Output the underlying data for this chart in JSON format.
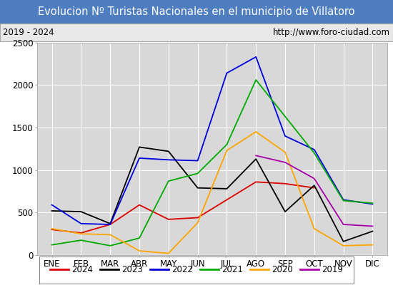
{
  "title": "Evolucion Nº Turistas Nacionales en el municipio de Villatoro",
  "subtitle_left": "2019 - 2024",
  "subtitle_right": "http://www.foro-ciudad.com",
  "title_bg_color": "#4f7ec0",
  "title_text_color": "#ffffff",
  "subtitle_bg_color": "#e8e8e8",
  "plot_bg_color": "#d8d8d8",
  "months": [
    "ENE",
    "FEB",
    "MAR",
    "ABR",
    "MAY",
    "JUN",
    "JUL",
    "AGO",
    "SEP",
    "OCT",
    "NOV",
    "DIC"
  ],
  "series": {
    "2024": {
      "color": "#dd0000",
      "values": [
        300,
        260,
        360,
        590,
        420,
        440,
        650,
        860,
        840,
        790,
        null,
        null
      ]
    },
    "2023": {
      "color": "#000000",
      "values": [
        520,
        510,
        370,
        1270,
        1220,
        790,
        780,
        1130,
        510,
        820,
        160,
        280
      ]
    },
    "2022": {
      "color": "#0000dd",
      "values": [
        590,
        370,
        360,
        1140,
        1120,
        1110,
        2140,
        2330,
        1400,
        1240,
        650,
        600
      ]
    },
    "2021": {
      "color": "#00aa00",
      "values": [
        120,
        175,
        110,
        200,
        870,
        960,
        1300,
        2060,
        1630,
        1200,
        640,
        610
      ]
    },
    "2020": {
      "color": "#ffa500",
      "values": [
        310,
        250,
        240,
        50,
        20,
        380,
        1230,
        1450,
        1210,
        310,
        110,
        120
      ]
    },
    "2019": {
      "color": "#aa00aa",
      "values": [
        null,
        null,
        null,
        null,
        null,
        null,
        null,
        1170,
        1090,
        900,
        360,
        340
      ]
    }
  },
  "ylim": [
    0,
    2500
  ],
  "yticks": [
    0,
    500,
    1000,
    1500,
    2000,
    2500
  ],
  "grid_color": "#ffffff",
  "legend_order": [
    "2024",
    "2023",
    "2022",
    "2021",
    "2020",
    "2019"
  ],
  "title_fontsize": 10.5,
  "tick_fontsize": 8.5
}
